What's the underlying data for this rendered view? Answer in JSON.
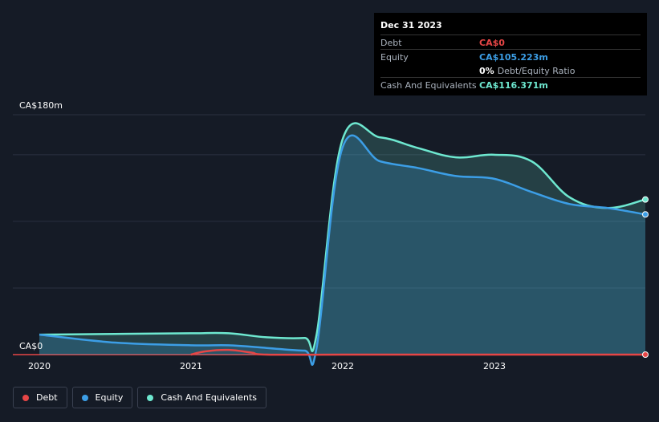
{
  "tooltip": {
    "date": "Dec 31 2023",
    "rows": [
      {
        "label": "Debt",
        "value": "CA$0",
        "color": "#e64646"
      },
      {
        "label": "Equity",
        "value": "CA$105.223m",
        "color": "#3c9ee6"
      },
      {
        "label": "",
        "value": "0%",
        "suffix": "Debt/Equity Ratio",
        "color": "#ffffff"
      },
      {
        "label": "Cash And Equivalents",
        "value": "CA$116.371m",
        "color": "#6ee8d0"
      }
    ]
  },
  "legend": [
    {
      "label": "Debt",
      "color": "#e64646"
    },
    {
      "label": "Equity",
      "color": "#3c9ee6"
    },
    {
      "label": "Cash And Equivalents",
      "color": "#6ee8d0"
    }
  ],
  "chart_data": {
    "type": "area",
    "y_max_label": "CA$180m",
    "y_min_label": "CA$0",
    "ylim": [
      0,
      180
    ],
    "xlim": [
      2020.0,
      2024.0
    ],
    "x_ticks": [
      "2020",
      "2021",
      "2022",
      "2023"
    ],
    "series": [
      {
        "name": "Cash And Equivalents",
        "color": "#6ee8d0",
        "x": [
          2020.0,
          2020.5,
          2021.0,
          2021.25,
          2021.5,
          2021.75,
          2021.83,
          2022.0,
          2022.25,
          2022.5,
          2022.75,
          2023.0,
          2023.25,
          2023.5,
          2023.75,
          2024.0
        ],
        "values": [
          15,
          15.5,
          16,
          16,
          13,
          12.5,
          15,
          161,
          163,
          155,
          148,
          150,
          145,
          118,
          110,
          116.4
        ]
      },
      {
        "name": "Equity",
        "color": "#3c9ee6",
        "x": [
          2020.0,
          2020.5,
          2021.0,
          2021.25,
          2021.5,
          2021.75,
          2021.83,
          2022.0,
          2022.25,
          2022.5,
          2022.75,
          2023.0,
          2023.25,
          2023.5,
          2023.75,
          2024.0
        ],
        "values": [
          15,
          9,
          7,
          7,
          5,
          3,
          5,
          155,
          145,
          140,
          134,
          132,
          122,
          113,
          110,
          105.2
        ]
      },
      {
        "name": "Debt",
        "color": "#e64646",
        "x": [
          2021.0,
          2021.1,
          2021.25,
          2021.4,
          2021.5,
          2022.0,
          2023.0,
          2024.0
        ],
        "values": [
          0,
          2.5,
          3.5,
          1.5,
          0,
          0,
          0,
          0
        ]
      }
    ]
  }
}
